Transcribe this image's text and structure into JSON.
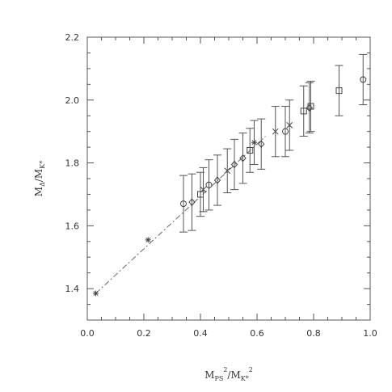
{
  "chart_data": {
    "type": "scatter",
    "xlabel": {
      "main": "M",
      "sub1": "PS",
      "sup1": "2",
      "mid": "/M",
      "sub2": "K*",
      "sup2": "2"
    },
    "ylabel": {
      "main": "M",
      "sub1": "Δ",
      "mid": "/M",
      "sub2": "K*"
    },
    "xlim": [
      0.0,
      1.0
    ],
    "ylim": [
      1.3,
      2.2
    ],
    "xticks": [
      "0.0",
      "0.2",
      "0.4",
      "0.6",
      "0.8",
      "1.0"
    ],
    "yticks": [
      "1.4",
      "1.6",
      "1.8",
      "2.0",
      "2.2"
    ],
    "grid": false,
    "fit_line": {
      "style": "dash-dot",
      "x": [
        0.03,
        0.63
      ],
      "y": [
        1.385,
        1.885
      ]
    },
    "series": [
      {
        "marker": "circle",
        "points": [
          {
            "x": 0.34,
            "y": 1.67,
            "err": 0.09
          },
          {
            "x": 0.43,
            "y": 1.73,
            "err": 0.08
          },
          {
            "x": 0.7,
            "y": 1.9,
            "err": 0.08
          },
          {
            "x": 0.975,
            "y": 2.065,
            "err": 0.08
          }
        ]
      },
      {
        "marker": "square",
        "points": [
          {
            "x": 0.4,
            "y": 1.7,
            "err": 0.07
          },
          {
            "x": 0.575,
            "y": 1.84,
            "err": 0.07
          },
          {
            "x": 0.765,
            "y": 1.965,
            "err": 0.08
          },
          {
            "x": 0.79,
            "y": 1.98,
            "err": 0.08
          },
          {
            "x": 0.89,
            "y": 2.03,
            "err": 0.08
          }
        ]
      },
      {
        "marker": "diamond",
        "points": [
          {
            "x": 0.37,
            "y": 1.675,
            "err": 0.09
          },
          {
            "x": 0.46,
            "y": 1.745,
            "err": 0.08
          },
          {
            "x": 0.52,
            "y": 1.795,
            "err": 0.08
          },
          {
            "x": 0.55,
            "y": 1.815,
            "err": 0.08
          },
          {
            "x": 0.615,
            "y": 1.86,
            "err": 0.08
          },
          {
            "x": 0.785,
            "y": 1.975,
            "err": 0.08
          }
        ]
      },
      {
        "marker": "cross",
        "points": [
          {
            "x": 0.41,
            "y": 1.715,
            "err": 0.07
          },
          {
            "x": 0.495,
            "y": 1.775,
            "err": 0.07
          },
          {
            "x": 0.665,
            "y": 1.9,
            "err": 0.08
          },
          {
            "x": 0.715,
            "y": 1.92,
            "err": 0.08
          }
        ]
      },
      {
        "marker": "asterisk",
        "points": [
          {
            "x": 0.03,
            "y": 1.385,
            "err": 0
          },
          {
            "x": 0.215,
            "y": 1.555,
            "err": 0
          },
          {
            "x": 0.59,
            "y": 1.865,
            "err": 0.07
          }
        ]
      }
    ]
  }
}
